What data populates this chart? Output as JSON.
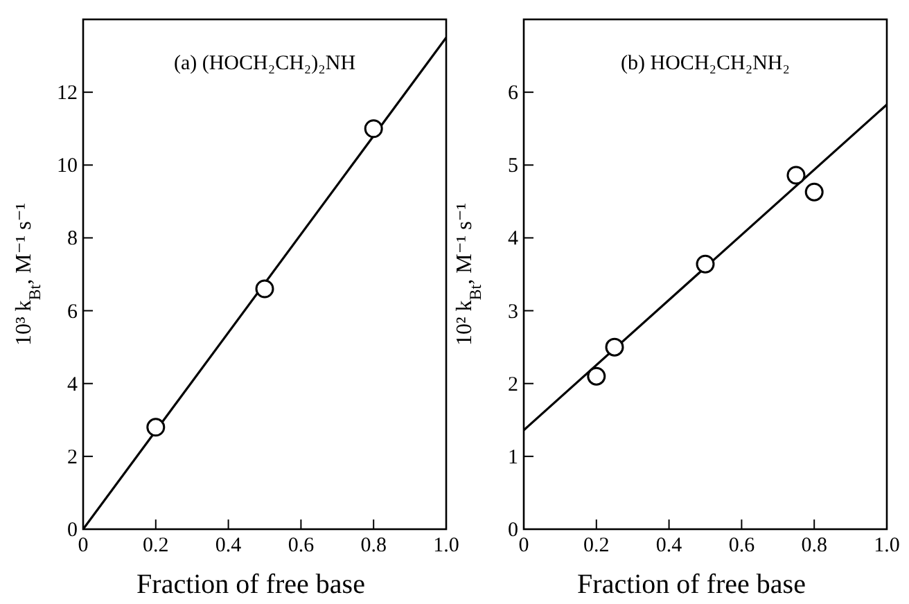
{
  "chart_data": [
    {
      "type": "scatter",
      "title": "(a) (HOCH₂CH₂)₂NH",
      "xlabel": "Fraction of free base",
      "ylabel": "10³ k$_{Bt}$, M⁻¹ s⁻¹",
      "marker": "circle",
      "xlim": [
        0,
        1.0
      ],
      "ylim": [
        0,
        14.0
      ],
      "xticks": [
        0,
        0.2,
        0.4,
        0.6,
        0.8,
        {
          "value": 1,
          "label": "1.0"
        }
      ],
      "yticks": [
        0,
        2,
        4,
        6,
        8,
        10,
        12
      ],
      "series": [
        {
          "type": "scatter",
          "color": "#000000",
          "x": [
            0.2,
            0.5,
            0.8
          ],
          "values": [
            2.8,
            6.6,
            11.0
          ]
        },
        {
          "type": "line",
          "color": "#000000",
          "marker": "none",
          "x": [
            0,
            1.0
          ],
          "values": [
            0,
            13.5
          ]
        }
      ]
    },
    {
      "type": "scatter",
      "title": "(b) HOCH₂CH₂NH₂",
      "xlabel": "Fraction of free base",
      "ylabel": "10² k$_{Bt}$, M⁻¹ s⁻¹",
      "marker": "circle",
      "xlim": [
        0,
        1.0
      ],
      "ylim": [
        0,
        7.0
      ],
      "xticks": [
        0,
        0.2,
        0.4,
        0.6,
        0.8,
        {
          "value": 1,
          "label": "1.0"
        }
      ],
      "yticks": [
        0,
        1,
        2,
        3,
        4,
        5,
        6
      ],
      "series": [
        {
          "type": "scatter",
          "color": "#000000",
          "x": [
            0.2,
            0.25,
            0.5,
            0.75,
            0.8
          ],
          "values": [
            2.1,
            2.5,
            3.64,
            4.86,
            4.63
          ]
        },
        {
          "type": "line",
          "color": "#000000",
          "marker": "none",
          "x": [
            0,
            1.0
          ],
          "values": [
            1.36,
            5.83
          ]
        }
      ]
    }
  ]
}
